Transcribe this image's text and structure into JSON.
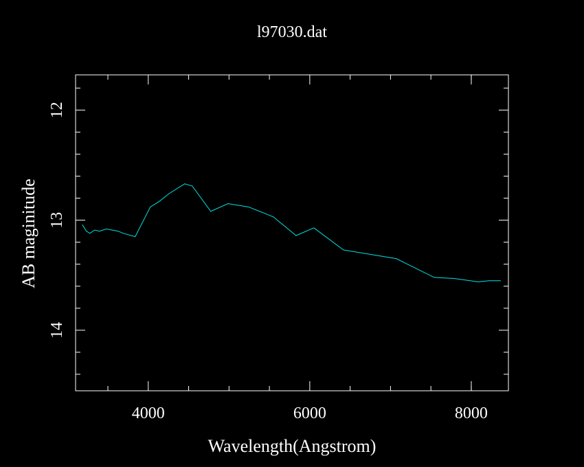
{
  "chart_data": {
    "type": "line",
    "title": "l97030.dat",
    "x_label": "Wavelength(Angstrom)",
    "y_label": "AB maginitude",
    "x": [
      3183,
      3234,
      3277,
      3336,
      3396,
      3481,
      3626,
      3694,
      3838,
      4026,
      4136,
      4255,
      4451,
      4545,
      4774,
      4987,
      5242,
      5549,
      5830,
      6051,
      6417,
      7072,
      7540,
      7787,
      8085,
      8221,
      8366
    ],
    "series": [
      {
        "color": "#00e5e5",
        "values": [
          13.04,
          13.1,
          13.12,
          13.09,
          13.1,
          13.08,
          13.1,
          13.12,
          13.15,
          12.88,
          12.83,
          12.76,
          12.67,
          12.69,
          12.92,
          12.85,
          12.88,
          12.97,
          13.14,
          13.07,
          13.27,
          13.35,
          13.52,
          13.53,
          13.56,
          13.55,
          13.55
        ]
      }
    ],
    "xlim": [
      3100,
      8460
    ],
    "ylim": [
      14.55,
      11.68
    ],
    "xticks": [
      4000,
      6000,
      8000
    ],
    "yticks": [
      12,
      13,
      14
    ],
    "xminorticks": [
      3500,
      4500,
      5000,
      5500,
      6500,
      7000,
      7500,
      8000
    ],
    "yminorticks": [
      11.8,
      12.2,
      12.4,
      12.6,
      12.8,
      13.2,
      13.4,
      13.6,
      13.8,
      14.2,
      14.4
    ],
    "axis_color": "#ffffff",
    "background": "#000000"
  }
}
